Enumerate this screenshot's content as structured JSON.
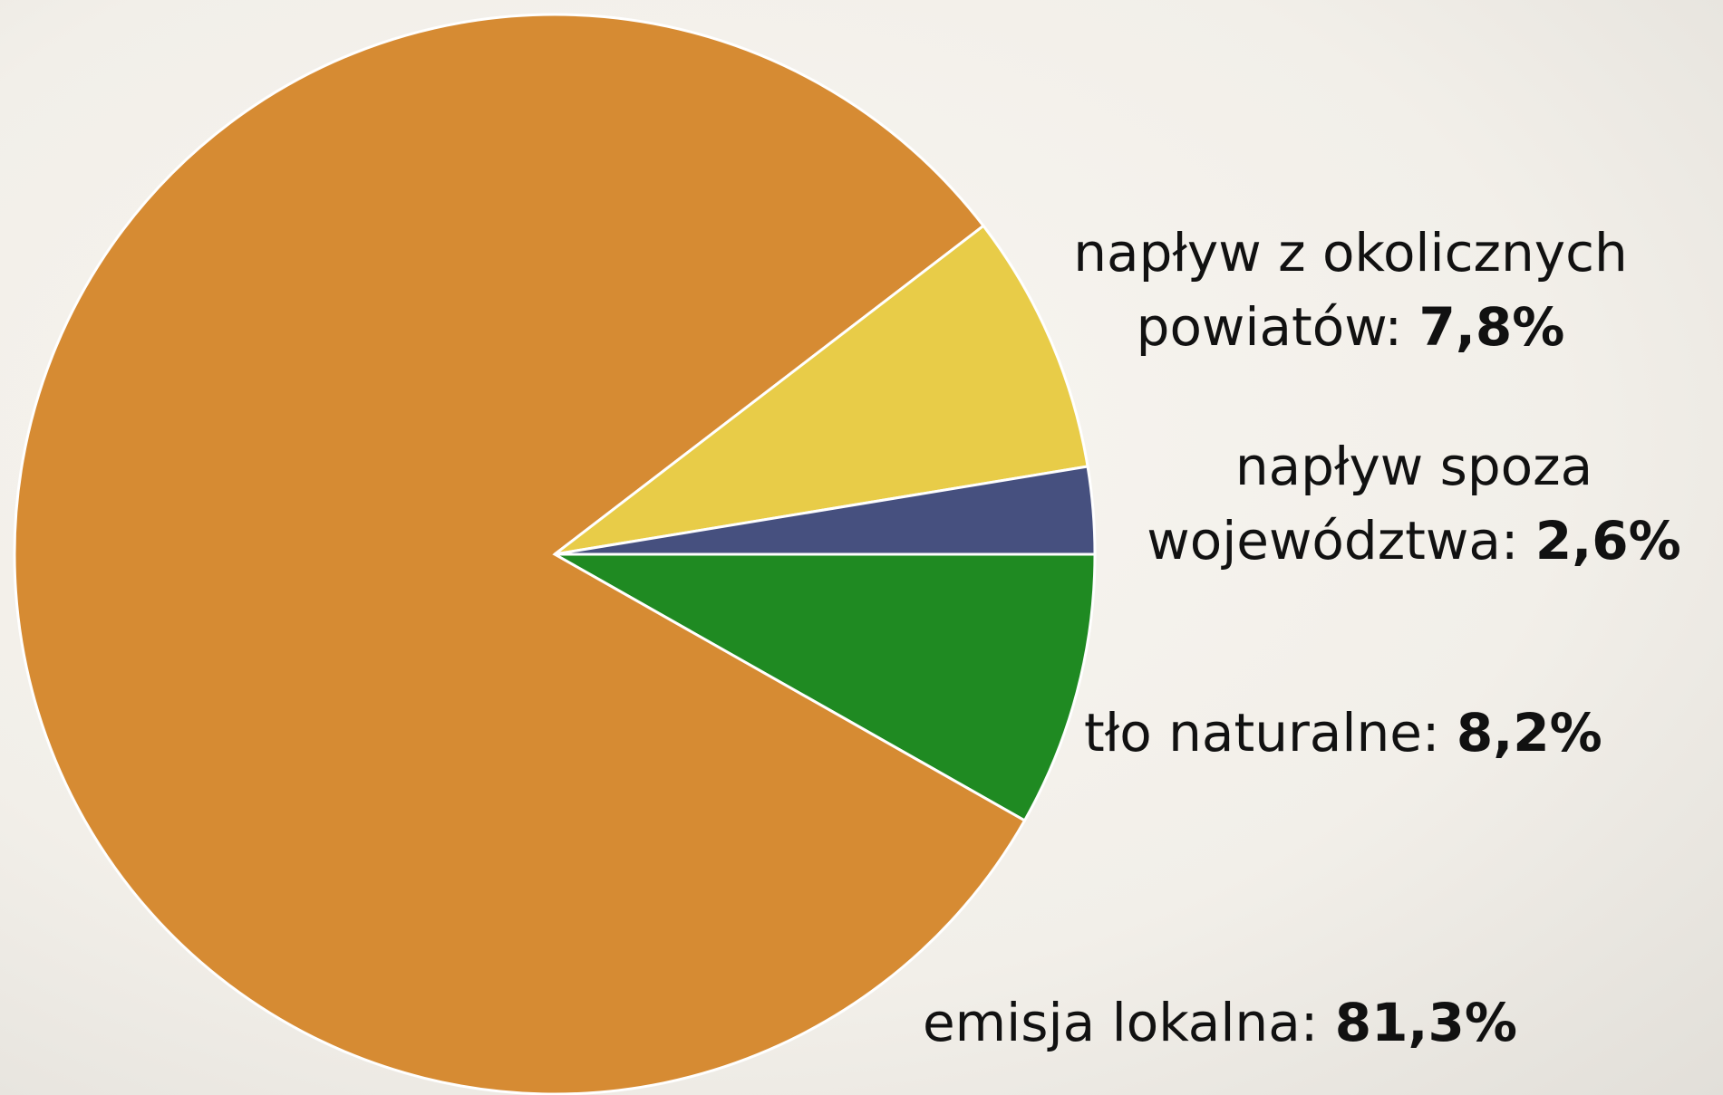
{
  "chart_data": {
    "type": "pie",
    "categories": [
      "tło naturalne:",
      "emisja lokalna:",
      "napływ z okolicznych\npowiatów:",
      "napływ spoza\nwojewództwa:"
    ],
    "values": [
      8.2,
      81.3,
      7.8,
      2.6
    ],
    "value_labels": [
      "8,2%",
      "81,3%",
      "7,8%",
      "2,6%"
    ],
    "colors": [
      "#1f8a22",
      "#d68b33",
      "#e8cc48",
      "#46507f"
    ]
  }
}
